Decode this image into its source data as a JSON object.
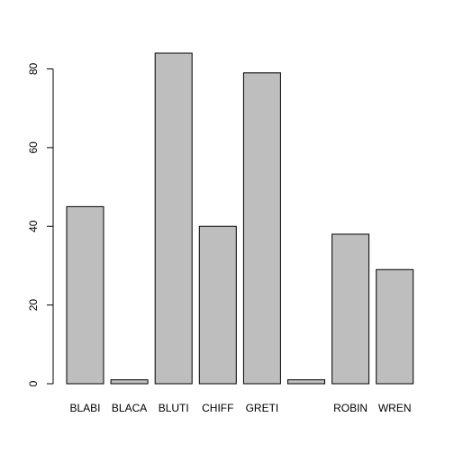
{
  "chart_data": {
    "type": "bar",
    "categories": [
      "BLABI",
      "BLACA",
      "BLUTI",
      "CHIFF",
      "GRETI",
      "",
      "ROBIN",
      "WREN"
    ],
    "values": [
      45,
      1,
      84,
      40,
      79,
      1,
      38,
      29
    ],
    "yticks": [
      "0",
      "20",
      "40",
      "60",
      "80"
    ],
    "ylim": [
      0,
      84
    ],
    "title": "",
    "xlabel": "",
    "ylabel": "",
    "grid": false,
    "colors": {
      "bar_fill": "#bebebe",
      "bar_stroke": "#000000",
      "axis": "#000000"
    }
  }
}
